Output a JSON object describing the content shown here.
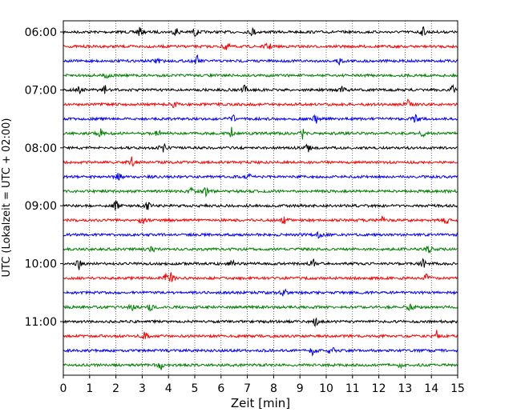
{
  "chart_data": {
    "type": "line",
    "xlabel": "Zeit  [min]",
    "ylabel": "UTC (Lokalzeit = UTC + 02:00)",
    "xlim": [
      0,
      15
    ],
    "x_ticks": [
      "0",
      "1",
      "2",
      "3",
      "4",
      "5",
      "6",
      "7",
      "8",
      "9",
      "10",
      "11",
      "12",
      "13",
      "14",
      "15"
    ],
    "y_ticks": [
      "06:00",
      "07:00",
      "08:00",
      "09:00",
      "10:00",
      "11:00"
    ],
    "trace_interval_min": 15,
    "start_time": "06:00",
    "grid": "vertical dotted at each minute",
    "trace_colors": [
      "#000000",
      "#ff0000",
      "#0000ff",
      "#008000"
    ],
    "traces": [
      {
        "time": "06:00",
        "color": "#000000",
        "events_min": [
          2.9,
          4.3,
          5.0,
          7.2,
          13.7
        ]
      },
      {
        "time": "06:15",
        "color": "#ff0000",
        "events_min": [
          6.2,
          7.8
        ]
      },
      {
        "time": "06:30",
        "color": "#0000ff",
        "events_min": [
          3.6,
          5.1,
          10.5
        ]
      },
      {
        "time": "06:45",
        "color": "#008000",
        "events_min": [
          1.7
        ]
      },
      {
        "time": "07:00",
        "color": "#000000",
        "events_min": [
          0.6,
          1.6,
          6.9,
          10.6,
          14.8
        ]
      },
      {
        "time": "07:15",
        "color": "#ff0000",
        "events_min": [
          4.2,
          13.1
        ]
      },
      {
        "time": "07:30",
        "color": "#0000ff",
        "events_min": [
          6.5,
          9.6,
          13.4
        ]
      },
      {
        "time": "07:45",
        "color": "#008000",
        "events_min": [
          1.4,
          3.6,
          6.4,
          9.1,
          13.7
        ]
      },
      {
        "time": "08:00",
        "color": "#000000",
        "events_min": [
          3.8,
          9.3
        ]
      },
      {
        "time": "08:15",
        "color": "#ff0000",
        "events_min": [
          2.6
        ]
      },
      {
        "time": "08:30",
        "color": "#0000ff",
        "events_min": [
          2.1,
          7.1
        ]
      },
      {
        "time": "08:45",
        "color": "#008000",
        "events_min": [
          4.9,
          5.4
        ]
      },
      {
        "time": "09:00",
        "color": "#000000",
        "events_min": [
          2.0,
          3.2
        ]
      },
      {
        "time": "09:15",
        "color": "#ff0000",
        "events_min": [
          3.0,
          8.4,
          12.1,
          14.6
        ]
      },
      {
        "time": "09:30",
        "color": "#0000ff",
        "events_min": [
          9.7
        ]
      },
      {
        "time": "09:45",
        "color": "#008000",
        "events_min": [
          3.4,
          13.9
        ]
      },
      {
        "time": "10:00",
        "color": "#000000",
        "events_min": [
          0.6,
          6.4,
          9.5,
          13.7
        ]
      },
      {
        "time": "10:15",
        "color": "#ff0000",
        "events_min": [
          3.9,
          4.1,
          13.8
        ]
      },
      {
        "time": "10:30",
        "color": "#0000ff",
        "events_min": [
          8.4
        ]
      },
      {
        "time": "10:45",
        "color": "#008000",
        "events_min": [
          2.6,
          3.3,
          13.2
        ]
      },
      {
        "time": "11:00",
        "color": "#000000",
        "events_min": [
          9.6
        ]
      },
      {
        "time": "11:15",
        "color": "#ff0000",
        "events_min": [
          3.1,
          14.2
        ]
      },
      {
        "time": "11:30",
        "color": "#0000ff",
        "events_min": [
          9.5,
          10.2
        ]
      },
      {
        "time": "11:45",
        "color": "#008000",
        "events_min": [
          3.7,
          12.8
        ]
      }
    ]
  }
}
